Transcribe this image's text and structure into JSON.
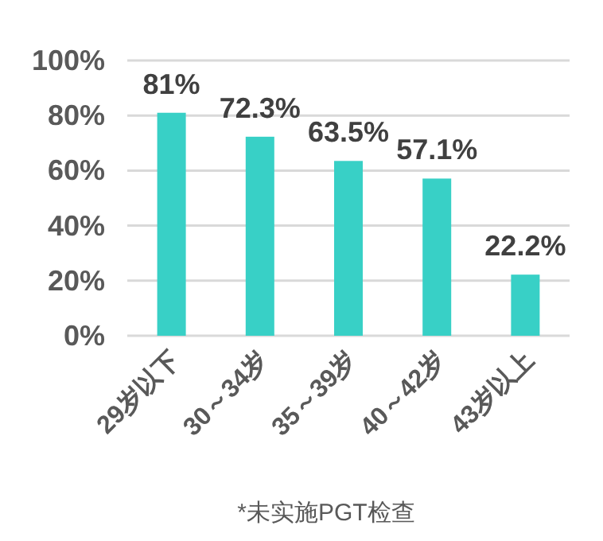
{
  "chart_data": {
    "type": "bar",
    "categories": [
      "29岁以下",
      "30～34岁",
      "35～39岁",
      "40～42岁",
      "43岁以上"
    ],
    "values": [
      81,
      72.3,
      63.5,
      57.1,
      22.2
    ],
    "value_labels": [
      "81%",
      "72.3%",
      "63.5%",
      "57.1%",
      "22.2%"
    ],
    "color": "#38d0c6",
    "ylim": [
      0,
      100
    ],
    "yticks": [
      {
        "value": 0,
        "label": "0%"
      },
      {
        "value": 20,
        "label": "20%"
      },
      {
        "value": 40,
        "label": "40%"
      },
      {
        "value": 60,
        "label": "60%"
      },
      {
        "value": 80,
        "label": "80%"
      },
      {
        "value": 100,
        "label": "100%"
      }
    ],
    "grid": "y",
    "annotations": [
      "*未实施PGT检查"
    ]
  }
}
